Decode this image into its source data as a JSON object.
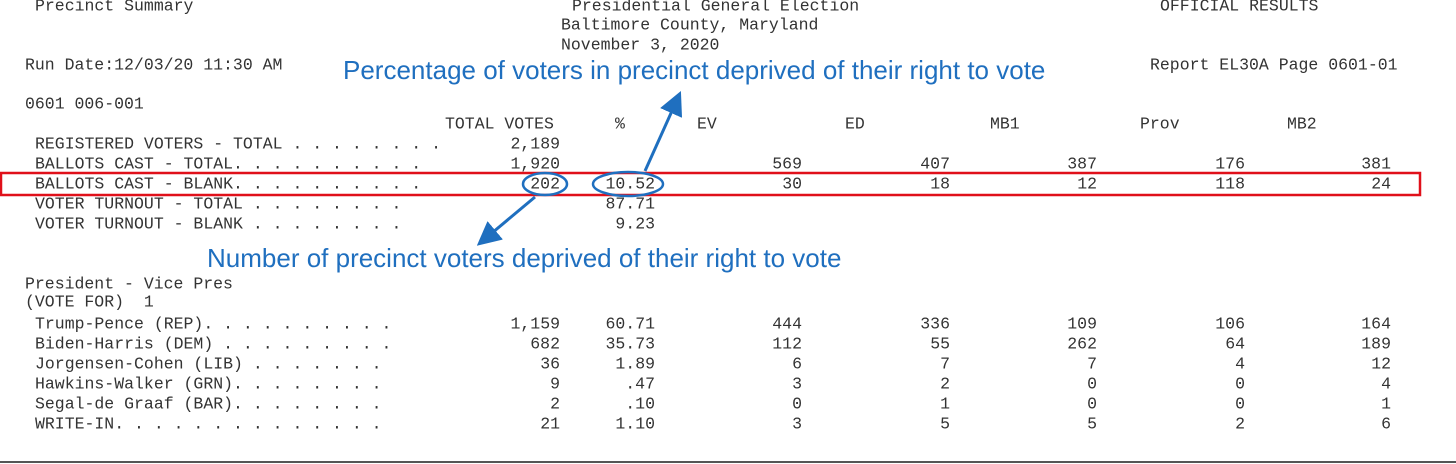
{
  "header": {
    "left": "Precinct Summary",
    "center": [
      "Presidential General Election",
      "Baltimore County, Maryland",
      "November 3, 2020"
    ],
    "right": "OFFICIAL RESULTS"
  },
  "run_date": "Run Date:12/03/20 11:30 AM",
  "report": "Report EL30A Page 0601-01",
  "precinct": "0601 006-001",
  "columns": {
    "total": "TOTAL VOTES",
    "percent": "%",
    "ev": "EV",
    "ed": "ED",
    "mb1": "MB1",
    "prov": "Prov",
    "mb2": "MB2"
  },
  "summary_rows": [
    {
      "label": "REGISTERED VOTERS - TOTAL . . . . . . . .",
      "total": "2,189"
    },
    {
      "label": "BALLOTS CAST - TOTAL. . . . . . . . . .",
      "total": "1,920",
      "ev": "569",
      "ed": "407",
      "mb1": "387",
      "prov": "176",
      "mb2": "381"
    },
    {
      "label": "BALLOTS CAST - BLANK. . . . . . . . . .",
      "total": "202",
      "percent": "10.52",
      "ev": "30",
      "ed": "18",
      "mb1": "12",
      "prov": "118",
      "mb2": "24"
    },
    {
      "label": "VOTER TURNOUT - TOTAL . . . . . . . .",
      "percent": "87.71"
    },
    {
      "label": "VOTER TURNOUT - BLANK . . . . . . . .",
      "percent": "9.23"
    }
  ],
  "contest": {
    "title": "President - Vice Pres",
    "vote_for": "(VOTE FOR)  1",
    "rows": [
      {
        "label": "Trump-Pence (REP). . . . . . . . . .",
        "total": "1,159",
        "percent": "60.71",
        "ev": "444",
        "ed": "336",
        "mb1": "109",
        "prov": "106",
        "mb2": "164"
      },
      {
        "label": "Biden-Harris (DEM) . . . . . . . . .",
        "total": "682",
        "percent": "35.73",
        "ev": "112",
        "ed": "55",
        "mb1": "262",
        "prov": "64",
        "mb2": "189"
      },
      {
        "label": "Jorgensen-Cohen (LIB) . . . . . . .",
        "total": "36",
        "percent": "1.89",
        "ev": "6",
        "ed": "7",
        "mb1": "7",
        "prov": "4",
        "mb2": "12"
      },
      {
        "label": "Hawkins-Walker (GRN). . . . . . . .",
        "total": "9",
        "percent": ".47",
        "ev": "3",
        "ed": "2",
        "mb1": "0",
        "prov": "0",
        "mb2": "4"
      },
      {
        "label": "Segal-de Graaf (BAR). . . . . . . .",
        "total": "2",
        "percent": ".10",
        "ev": "0",
        "ed": "1",
        "mb1": "0",
        "prov": "0",
        "mb2": "1"
      },
      {
        "label": "WRITE-IN. . . . . . . . . . . . . .",
        "total": "21",
        "percent": "1.10",
        "ev": "3",
        "ed": "5",
        "mb1": "5",
        "prov": "2",
        "mb2": "6"
      }
    ]
  },
  "annotations": {
    "percentage": "Percentage of voters in precinct deprived of their right to vote",
    "number": "Number of precinct voters deprived of their right to vote"
  }
}
